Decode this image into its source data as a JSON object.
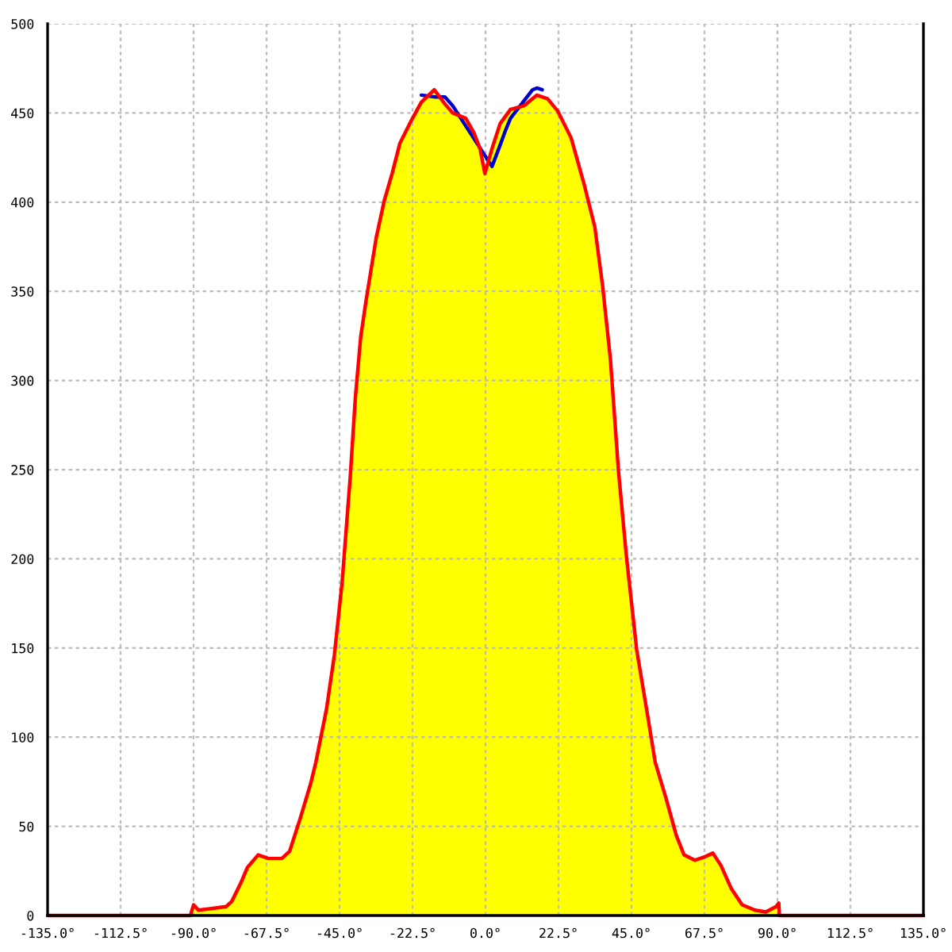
{
  "chart_data": {
    "type": "line",
    "xlim": [
      -135,
      135
    ],
    "ylim": [
      0,
      500
    ],
    "xticks": [
      {
        "value": -135,
        "label": "-135.0°"
      },
      {
        "value": -112.5,
        "label": "-112.5°"
      },
      {
        "value": -90,
        "label": "-90.0°"
      },
      {
        "value": -67.5,
        "label": "-67.5°"
      },
      {
        "value": -45,
        "label": "-45.0°"
      },
      {
        "value": -22.5,
        "label": "-22.5°"
      },
      {
        "value": 0,
        "label": "0.0°"
      },
      {
        "value": 22.5,
        "label": "22.5°"
      },
      {
        "value": 45,
        "label": "45.0°"
      },
      {
        "value": 67.5,
        "label": "67.5°"
      },
      {
        "value": 90,
        "label": "90.0°"
      },
      {
        "value": 112.5,
        "label": "112.5°"
      },
      {
        "value": 135,
        "label": "135.0°"
      }
    ],
    "yticks": [
      0,
      50,
      100,
      150,
      200,
      250,
      300,
      350,
      400,
      450,
      500
    ],
    "grid": true,
    "series": [
      {
        "type": "area",
        "color": "#ffff00",
        "x": [
          -91,
          -90,
          -88.5,
          -84,
          -80,
          -78.2,
          -75.5,
          -73.4,
          -70.1,
          -66.9,
          -62.8,
          -60.4,
          -57.2,
          -53.9,
          -52.3,
          -49.0,
          -46.6,
          -44.2,
          -41.7,
          -40.1,
          -38.5,
          -36.9,
          -33.7,
          -31.2,
          -28.8,
          -26.4,
          -23.1,
          -19.8,
          -15.8,
          -12.5,
          -10.1,
          -6.1,
          -3.6,
          -1.7,
          -0.2,
          2.0,
          4.5,
          7.7,
          11.8,
          15.8,
          19.1,
          22.3,
          26.4,
          30.4,
          33.7,
          36.1,
          38.5,
          41.0,
          43.4,
          46.6,
          49.9,
          52.3,
          55.6,
          58.8,
          61.2,
          64.5,
          67.7,
          70.1,
          72.6,
          75.8,
          79.1,
          83.1,
          86.4,
          89.6,
          90.4,
          90.6
        ],
        "values": [
          0,
          6,
          3,
          4,
          5,
          8,
          18,
          27,
          34,
          32,
          32,
          36,
          54,
          74,
          86,
          116,
          146,
          187,
          246,
          291,
          324,
          344,
          380,
          401,
          416,
          433,
          445,
          456,
          463,
          455,
          450,
          447,
          439,
          430,
          416,
          430,
          444,
          452,
          454,
          460,
          458,
          451,
          436,
          410,
          386,
          353,
          312,
          249,
          202,
          149,
          113,
          86,
          66,
          45,
          34,
          31,
          33,
          35,
          28,
          15,
          6,
          3,
          2,
          5,
          7,
          0
        ]
      },
      {
        "type": "line",
        "color": "#0000cc",
        "x": [
          -19.8,
          -15.8,
          -12.5,
          -10.1,
          -5,
          2.0,
          4.5,
          6.1,
          7.7,
          11,
          14.5,
          15.8,
          17.5
        ],
        "values": [
          460,
          459,
          459,
          454,
          null,
          420,
          432,
          440,
          447,
          null,
          463,
          464,
          463
        ]
      },
      {
        "color": "#ff0000",
        "x": [
          -135,
          -91,
          -90,
          -88.5,
          -84,
          -80,
          -78.2,
          -75.5,
          -73.4,
          -70.1,
          -66.9,
          -62.8,
          -60.4,
          -57.2,
          -53.9,
          -52.3,
          -49.0,
          -46.6,
          -44.2,
          -41.7,
          -40.1,
          -38.5,
          -36.9,
          -33.7,
          -31.2,
          -28.8,
          -26.4,
          -23.1,
          -19.8,
          -15.8,
          -12.5,
          -10.1,
          -6.1,
          -3.6,
          -1.7,
          -0.2,
          2.0,
          4.5,
          7.7,
          11.8,
          15.8,
          19.1,
          22.3,
          26.4,
          30.4,
          33.7,
          36.1,
          38.5,
          41.0,
          43.4,
          46.6,
          49.9,
          52.3,
          55.6,
          58.8,
          61.2,
          64.5,
          67.7,
          70.1,
          72.6,
          75.8,
          79.1,
          83.1,
          86.4,
          89.6,
          90.4,
          90.6,
          135
        ],
        "values": [
          0,
          0,
          6,
          3,
          4,
          5,
          8,
          18,
          27,
          34,
          32,
          32,
          36,
          54,
          74,
          86,
          116,
          146,
          187,
          246,
          291,
          324,
          344,
          380,
          401,
          416,
          433,
          445,
          456,
          463,
          455,
          450,
          447,
          439,
          430,
          416,
          430,
          444,
          452,
          454,
          460,
          458,
          451,
          436,
          410,
          386,
          353,
          312,
          249,
          202,
          149,
          113,
          86,
          66,
          45,
          34,
          31,
          33,
          35,
          28,
          15,
          6,
          3,
          2,
          5,
          7,
          0,
          0
        ]
      }
    ]
  }
}
